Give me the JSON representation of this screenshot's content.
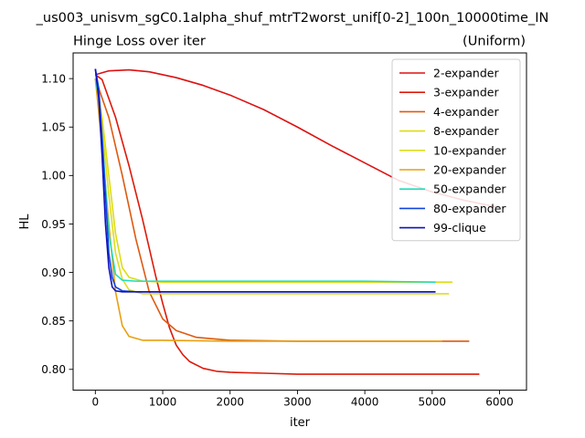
{
  "figure": {
    "suptitle": "_us003_unisvm_sgC0.1alpha_shuf_mtrT2worst_unif[0-2]_100n_10000time_IN"
  },
  "chart_data": {
    "type": "line",
    "title": "Hinge Loss over iter",
    "title_right": "(Uniform)",
    "xlabel": "iter",
    "ylabel": "HL",
    "xlim": [
      -330,
      6400
    ],
    "ylim": [
      0.7785,
      1.1265
    ],
    "xticks": [
      0,
      1000,
      2000,
      3000,
      4000,
      5000,
      6000
    ],
    "yticks": [
      0.8,
      0.85,
      0.9,
      0.95,
      1.0,
      1.05,
      1.1
    ],
    "xtick_labels": [
      "0",
      "1000",
      "2000",
      "3000",
      "4000",
      "5000",
      "6000"
    ],
    "ytick_labels": [
      "0.80",
      "0.85",
      "0.90",
      "0.95",
      "1.00",
      "1.05",
      "1.10"
    ],
    "grid": false,
    "legend_position": "top-right",
    "series": [
      {
        "name": "2-expander",
        "color": "#dd1111",
        "x": [
          0,
          200,
          500,
          800,
          1200,
          1600,
          2000,
          2500,
          3000,
          3500,
          4000,
          4500,
          5000,
          5500,
          6000
        ],
        "y": [
          1.104,
          1.108,
          1.109,
          1.107,
          1.101,
          1.093,
          1.083,
          1.068,
          1.05,
          1.031,
          1.013,
          0.995,
          0.983,
          0.974,
          0.967
        ]
      },
      {
        "name": "3-expander",
        "color": "#dd1a0a",
        "x": [
          0,
          100,
          300,
          500,
          700,
          900,
          1000,
          1100,
          1200,
          1300,
          1400,
          1600,
          1800,
          2000,
          2500,
          3000,
          4000,
          5000,
          5700
        ],
        "y": [
          1.104,
          1.099,
          1.06,
          1.01,
          0.955,
          0.895,
          0.868,
          0.843,
          0.825,
          0.815,
          0.808,
          0.801,
          0.798,
          0.797,
          0.796,
          0.795,
          0.795,
          0.795,
          0.795
        ]
      },
      {
        "name": "4-expander",
        "color": "#dd5a11",
        "x": [
          0,
          200,
          400,
          600,
          800,
          1000,
          1200,
          1500,
          2000,
          3000,
          4000,
          5000,
          5550
        ],
        "y": [
          1.1,
          1.06,
          1.0,
          0.935,
          0.88,
          0.852,
          0.84,
          0.833,
          0.83,
          0.829,
          0.829,
          0.829,
          0.829
        ]
      },
      {
        "name": "8-expander",
        "color": "#dddd11",
        "x": [
          0,
          100,
          200,
          300,
          400,
          500,
          700,
          1000,
          2000,
          3000,
          4000,
          5000,
          5300
        ],
        "y": [
          1.1,
          1.06,
          1.0,
          0.94,
          0.905,
          0.895,
          0.891,
          0.89,
          0.89,
          0.89,
          0.89,
          0.89,
          0.89
        ]
      },
      {
        "name": "10-expander",
        "color": "#dddd22",
        "x": [
          0,
          100,
          200,
          300,
          400,
          500,
          700,
          1000,
          2000,
          3000,
          4000,
          5000,
          5250
        ],
        "y": [
          1.1,
          1.05,
          0.98,
          0.92,
          0.893,
          0.882,
          0.878,
          0.878,
          0.878,
          0.878,
          0.878,
          0.878,
          0.878
        ]
      },
      {
        "name": "20-expander",
        "color": "#e8a010",
        "x": [
          0,
          100,
          200,
          300,
          400,
          500,
          700,
          1000,
          2000,
          3000,
          4000,
          5000,
          5150
        ],
        "y": [
          1.1,
          1.03,
          0.95,
          0.88,
          0.845,
          0.834,
          0.83,
          0.83,
          0.829,
          0.829,
          0.829,
          0.829,
          0.829
        ]
      },
      {
        "name": "50-expander",
        "color": "#22ddbb",
        "x": [
          0,
          50,
          100,
          200,
          300,
          400,
          600,
          1000,
          2000,
          3000,
          4000,
          5050
        ],
        "y": [
          1.1,
          1.08,
          1.04,
          0.94,
          0.898,
          0.892,
          0.891,
          0.891,
          0.891,
          0.891,
          0.891,
          0.89
        ]
      },
      {
        "name": "80-expander",
        "color": "#1144dd",
        "x": [
          0,
          50,
          100,
          150,
          200,
          250,
          300,
          400,
          600,
          1000,
          2000,
          3000,
          4000,
          5050
        ],
        "y": [
          1.11,
          1.09,
          1.04,
          0.98,
          0.92,
          0.895,
          0.885,
          0.881,
          0.88,
          0.88,
          0.88,
          0.88,
          0.88,
          0.88
        ]
      },
      {
        "name": "99-clique",
        "color": "#1111bb",
        "x": [
          0,
          50,
          100,
          150,
          200,
          250,
          300,
          400,
          600,
          1000,
          2000,
          3000,
          4000,
          5050
        ],
        "y": [
          1.11,
          1.08,
          1.02,
          0.95,
          0.905,
          0.885,
          0.881,
          0.88,
          0.88,
          0.88,
          0.88,
          0.88,
          0.88,
          0.88
        ]
      }
    ]
  }
}
